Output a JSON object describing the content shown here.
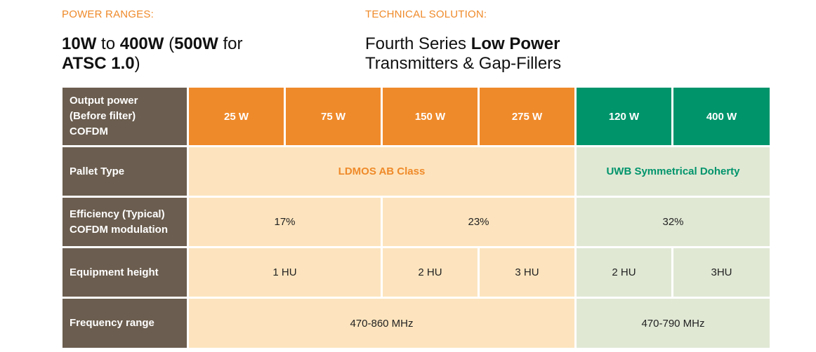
{
  "power_ranges": {
    "label": "POWER RANGES:",
    "line1_bold_a": "10W",
    "line1_text_b": " to ",
    "line1_bold_c": "400W",
    "line1_text_d": " (",
    "line1_bold_e": "500W",
    "line1_text_f": " for",
    "line2_bold": "ATSC 1.0",
    "line2_text": ")"
  },
  "technical_solution": {
    "label": "TECHNICAL SOLUTION:",
    "line1_text": "Fourth Series ",
    "line1_bold": "Low Power",
    "line2_text": "Transmitters & Gap-Fillers"
  },
  "table": {
    "output_power": {
      "label": "Output power\n(Before filter)\nCOFDM",
      "values": [
        "25 W",
        "75 W",
        "150 W",
        "275 W",
        "120 W",
        "400 W"
      ]
    },
    "pallet_type": {
      "label": "Pallet Type",
      "ldmos": "LDMOS AB Class",
      "uwb": "UWB Symmetrical Doherty"
    },
    "efficiency": {
      "label": "Efficiency (Typical)\nCOFDM modulation",
      "values": [
        "17%",
        "23%",
        "32%"
      ]
    },
    "equipment_height": {
      "label": "Equipment height",
      "values": [
        "1 HU",
        "2 HU",
        "3 HU",
        "2 HU",
        "3HU"
      ]
    },
    "frequency_range": {
      "label": "Frequency range",
      "values": [
        "470-860 MHz",
        "470-790 MHz"
      ]
    }
  },
  "colors": {
    "accent_orange": "#ef8a2a",
    "accent_green": "#00946b",
    "row_header": "#6b5d4f",
    "light_orange": "#fde4be",
    "light_green": "#e0e8d4"
  }
}
